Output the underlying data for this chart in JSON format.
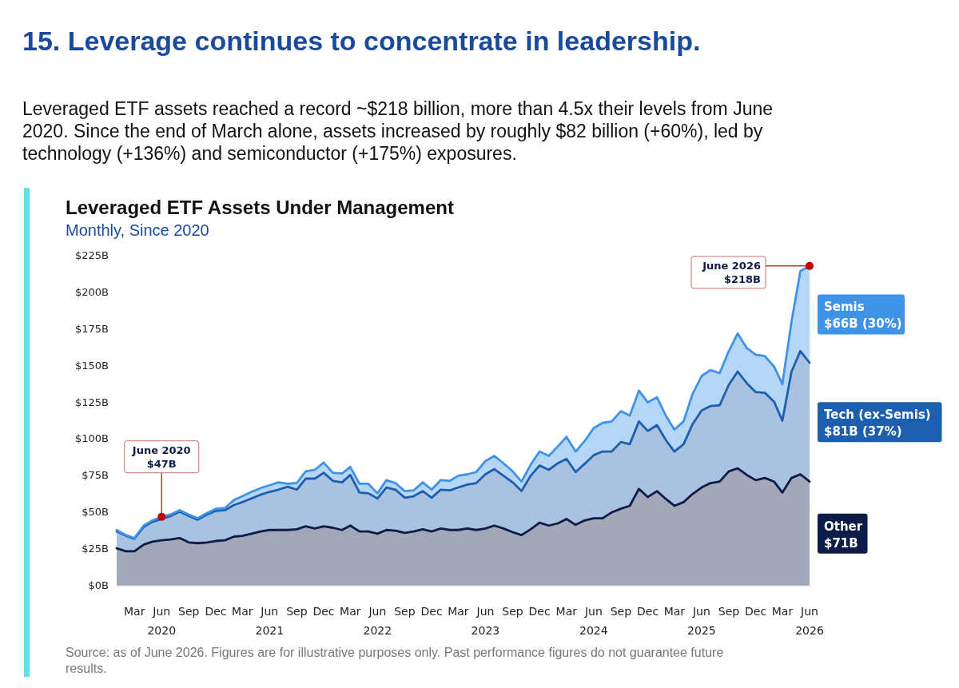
{
  "chart_data": {
    "type": "area",
    "stacked": true,
    "title": "Leveraged ETF Assets Under Management",
    "subtitle": "Monthly, Since 2020",
    "annotations": [
      "15. Leverage continues to concentrate in leadership.",
      "Leveraged ETF assets reached a record ~$218 billion, more than 4.5x their levels from June 2020. Since the end of March alone, assets increased by roughly $82 billion (+60%), led by technology (+136%) and semiconductor (+175%) exposures.",
      "Source: as of June 2026. Figures are for illustrative purposes only. Past performance figures do not guarantee future results.",
      "$71B",
      "$81B (37%)",
      "$66B (30%)",
      {
        "text": "June 2020\n$47B",
        "x": "2020-06",
        "y": 47
      },
      {
        "text": "June 2026\n$218B",
        "x": "2026-06",
        "y": 218
      }
    ],
    "x": [
      "2020-01",
      "2020-02",
      "2020-03",
      "2020-04",
      "2020-05",
      "2020-06",
      "2020-07",
      "2020-08",
      "2020-09",
      "2020-10",
      "2020-11",
      "2020-12",
      "2021-01",
      "2021-02",
      "2021-03",
      "2021-04",
      "2021-05",
      "2021-06",
      "2021-07",
      "2021-08",
      "2021-09",
      "2021-10",
      "2021-11",
      "2021-12",
      "2022-01",
      "2022-02",
      "2022-03",
      "2022-04",
      "2022-05",
      "2022-06",
      "2022-07",
      "2022-08",
      "2022-09",
      "2022-10",
      "2022-11",
      "2022-12",
      "2023-01",
      "2023-02",
      "2023-03",
      "2023-04",
      "2023-05",
      "2023-06",
      "2023-07",
      "2023-08",
      "2023-09",
      "2023-10",
      "2023-11",
      "2023-12",
      "2024-01",
      "2024-02",
      "2024-03",
      "2024-04",
      "2024-05",
      "2024-06",
      "2024-07",
      "2024-08",
      "2024-09",
      "2024-10",
      "2024-11",
      "2024-12",
      "2025-01",
      "2025-02",
      "2025-03",
      "2025-04",
      "2025-05",
      "2025-06",
      "2025-07",
      "2025-08",
      "2025-09",
      "2025-10",
      "2025-11",
      "2025-12",
      "2026-01",
      "2026-02",
      "2026-03",
      "2026-04",
      "2026-05",
      "2026-06"
    ],
    "series": [
      {
        "name": "Other",
        "color": "#0d1b48",
        "values": [
          25.5,
          23.5,
          23.5,
          28,
          30,
          31,
          31.5,
          32.5,
          29.5,
          29,
          29.5,
          30.5,
          31,
          33.5,
          34,
          35.5,
          37,
          38,
          38,
          38,
          38.5,
          40.5,
          39,
          40.5,
          39.5,
          38,
          41,
          37,
          37,
          35.5,
          38,
          37.5,
          36,
          37,
          38.5,
          37,
          39,
          38,
          38,
          39,
          38,
          39,
          41,
          39,
          36.5,
          34.5,
          38.5,
          43,
          41,
          42.5,
          45.5,
          41.5,
          44.5,
          46,
          46,
          50,
          52.5,
          54.5,
          66,
          60.5,
          64.5,
          59,
          54.5,
          57,
          62.5,
          67,
          70,
          71,
          78,
          80,
          75.5,
          72,
          73.5,
          71,
          63.5,
          73.5,
          76,
          71
        ]
      },
      {
        "name": "Tech (ex-Semis)",
        "color": "#1d5fae",
        "values": [
          11.5,
          10.5,
          8.5,
          12,
          13.5,
          14.5,
          16,
          18,
          18,
          16,
          19,
          20.5,
          20.5,
          21.5,
          23,
          24,
          25,
          26,
          27.5,
          29.5,
          27,
          32.5,
          34,
          36.5,
          32,
          32.5,
          34.5,
          26.5,
          26,
          24,
          29,
          28,
          24,
          24,
          26,
          23,
          26.5,
          27,
          29,
          30,
          32,
          37,
          38.5,
          36,
          34,
          30,
          36.5,
          39,
          38,
          41,
          41,
          36,
          38.5,
          43,
          45.5,
          41.5,
          45.5,
          42,
          46,
          45,
          45,
          40,
          37,
          39.5,
          47.5,
          52.5,
          52.5,
          52,
          59,
          66,
          62.5,
          60,
          58,
          54.5,
          49,
          72.5,
          84,
          81
        ]
      },
      {
        "name": "Semis",
        "color": "#3f93e6",
        "values": [
          1,
          0.5,
          0.5,
          1,
          1,
          1.5,
          1,
          1,
          1,
          1,
          1,
          1.5,
          1.5,
          3.5,
          4,
          4.5,
          4.5,
          4.5,
          5,
          2,
          4.5,
          5,
          6,
          7,
          5.5,
          6,
          5.5,
          6,
          6.5,
          3.5,
          5,
          4.5,
          4.5,
          4,
          6,
          5.5,
          6.5,
          6.5,
          8,
          7,
          7.5,
          9,
          9,
          8.5,
          7.5,
          6.5,
          7.5,
          9.5,
          9.5,
          11.5,
          15,
          14,
          15.5,
          18.5,
          19.5,
          20.5,
          21,
          19.5,
          21,
          19.5,
          19,
          16.5,
          15,
          15.5,
          20.5,
          23.5,
          24.5,
          22,
          23,
          26,
          24,
          25.5,
          25,
          24,
          25,
          34,
          54.5,
          66
        ]
      }
    ],
    "xlim": [
      "2020-01",
      "2026-06"
    ],
    "xticks": [
      {
        "value": "2020-03",
        "label": "Mar"
      },
      {
        "value": "2020-06",
        "label": "Jun\n2020"
      },
      {
        "value": "2020-09",
        "label": "Sep"
      },
      {
        "value": "2020-12",
        "label": "Dec"
      },
      {
        "value": "2021-03",
        "label": "Mar"
      },
      {
        "value": "2021-06",
        "label": "Jun\n2021"
      },
      {
        "value": "2021-09",
        "label": "Sep"
      },
      {
        "value": "2021-12",
        "label": "Dec"
      },
      {
        "value": "2022-03",
        "label": "Mar"
      },
      {
        "value": "2022-06",
        "label": "Jun\n2022"
      },
      {
        "value": "2022-09",
        "label": "Sep"
      },
      {
        "value": "2022-12",
        "label": "Dec"
      },
      {
        "value": "2023-03",
        "label": "Mar"
      },
      {
        "value": "2023-06",
        "label": "Jun\n2023"
      },
      {
        "value": "2023-09",
        "label": "Sep"
      },
      {
        "value": "2023-12",
        "label": "Dec"
      },
      {
        "value": "2024-03",
        "label": "Mar"
      },
      {
        "value": "2024-06",
        "label": "Jun\n2024"
      },
      {
        "value": "2024-09",
        "label": "Sep"
      },
      {
        "value": "2024-12",
        "label": "Dec"
      },
      {
        "value": "2025-03",
        "label": "Mar"
      },
      {
        "value": "2025-06",
        "label": "Jun\n2025"
      },
      {
        "value": "2025-09",
        "label": "Sep"
      },
      {
        "value": "2025-12",
        "label": "Dec"
      },
      {
        "value": "2026-03",
        "label": "Mar"
      },
      {
        "value": "2026-06",
        "label": "Jun\n2026"
      }
    ],
    "ylim": [
      0,
      225
    ],
    "yticks": [
      {
        "value": 0,
        "label": "$0B"
      },
      {
        "value": 25,
        "label": "$25B"
      },
      {
        "value": 50,
        "label": "$50B"
      },
      {
        "value": 75,
        "label": "$75B"
      },
      {
        "value": 100,
        "label": "$100B"
      },
      {
        "value": 125,
        "label": "$125B"
      },
      {
        "value": 150,
        "label": "$150B"
      },
      {
        "value": 175,
        "label": "$175B"
      },
      {
        "value": 200,
        "label": "$200B"
      },
      {
        "value": 225,
        "label": "$225B"
      }
    ],
    "legend": "right",
    "grid": false,
    "line_style": "solid"
  }
}
